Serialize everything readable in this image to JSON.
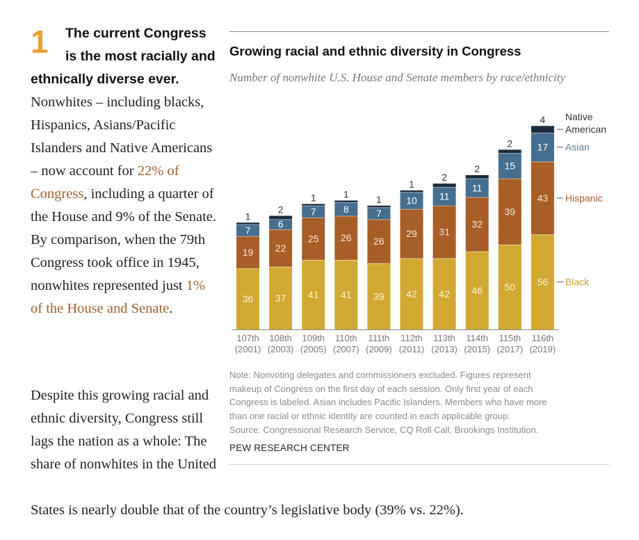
{
  "article": {
    "number": "1",
    "lead": "The current Congress is the most racially and ethnically diverse ever.",
    "p1_a": " Nonwhites – including blacks, Hispanics, Asians/Pacific Islanders and Native Americans – now account for ",
    "p1_link1": "22% of Congress",
    "p1_b": ", including a quarter of the House and 9% of the Senate. By comparison, when the 79th Congress took office in 1945, nonwhites represented just ",
    "p1_link2": "1% of the House and Senate",
    "p1_c": ".",
    "p2": "Despite this growing racial and ethnic diversity, Congress still lags the nation as a whole: The share of nonwhites in the United",
    "p2_last": "States is nearly double that of the country’s legislative body (39% vs. 22%).",
    "link_color": "#a0622d",
    "number_color": "#e8a23a"
  },
  "figure": {
    "title": "Growing racial and ethnic diversity in Congress",
    "subtitle": "Number of nonwhite U.S. House and Senate members by race/ethnicity",
    "notes": [
      "Note: Nonvoting delegates and commissioners excluded. Figures represent",
      "makeup of Congress on the first day of each session. Only first year of each",
      "Congress is labeled. Asian includes Pacific Islanders. Members who have more",
      "than one racial or ethnic identity are counted in each applicable group.",
      "Source: Congressional Research Service, CQ Roll Call, Brookings Institution."
    ],
    "credit": "PEW RESEARCH CENTER"
  },
  "chart_data": {
    "type": "bar",
    "stacked": true,
    "title": "Growing racial and ethnic diversity in Congress",
    "subtitle": "Number of nonwhite U.S. House and Senate members by race/ethnicity",
    "xlabel": "",
    "ylabel": "",
    "ylim": [
      0,
      120
    ],
    "grid": false,
    "legend": "right (inline labels at last bar)",
    "categories": [
      [
        "107th",
        "(2001)"
      ],
      [
        "108th",
        "(2003)"
      ],
      [
        "109th",
        "(2005)"
      ],
      [
        "110th",
        "(2007)"
      ],
      [
        "111th",
        "(2009)"
      ],
      [
        "112th",
        "(2011)"
      ],
      [
        "113th",
        "(2013)"
      ],
      [
        "114th",
        "(2015)"
      ],
      [
        "115th",
        "(2017)"
      ],
      [
        "116th",
        "(2019)"
      ]
    ],
    "series": [
      {
        "name": "Black",
        "legend_label": "Black",
        "color": "#d1a932",
        "label_color": "#fff5d6",
        "values": [
          36,
          37,
          41,
          41,
          39,
          42,
          42,
          46,
          50,
          56
        ]
      },
      {
        "name": "Hispanic",
        "legend_label": "Hispanic",
        "color": "#a85e27",
        "label_color": "#fbe6d3",
        "values": [
          19,
          22,
          25,
          26,
          26,
          29,
          31,
          32,
          39,
          43
        ]
      },
      {
        "name": "Asian",
        "legend_label": "Asian",
        "color": "#466e8e",
        "label_color": "#ffffff",
        "values": [
          7,
          6,
          7,
          8,
          7,
          10,
          11,
          11,
          15,
          17
        ]
      },
      {
        "name": "Native American",
        "legend_label": [
          "Native",
          "American"
        ],
        "color": "#1e2d3d",
        "label_color": "#333333",
        "values": [
          1,
          2,
          1,
          1,
          1,
          1,
          2,
          2,
          2,
          4
        ]
      }
    ],
    "legend_text_colors": {
      "Black": "#c9a235",
      "Hispanic": "#a85e27",
      "Asian": "#5e7e98",
      "Native American": "#333333"
    }
  }
}
